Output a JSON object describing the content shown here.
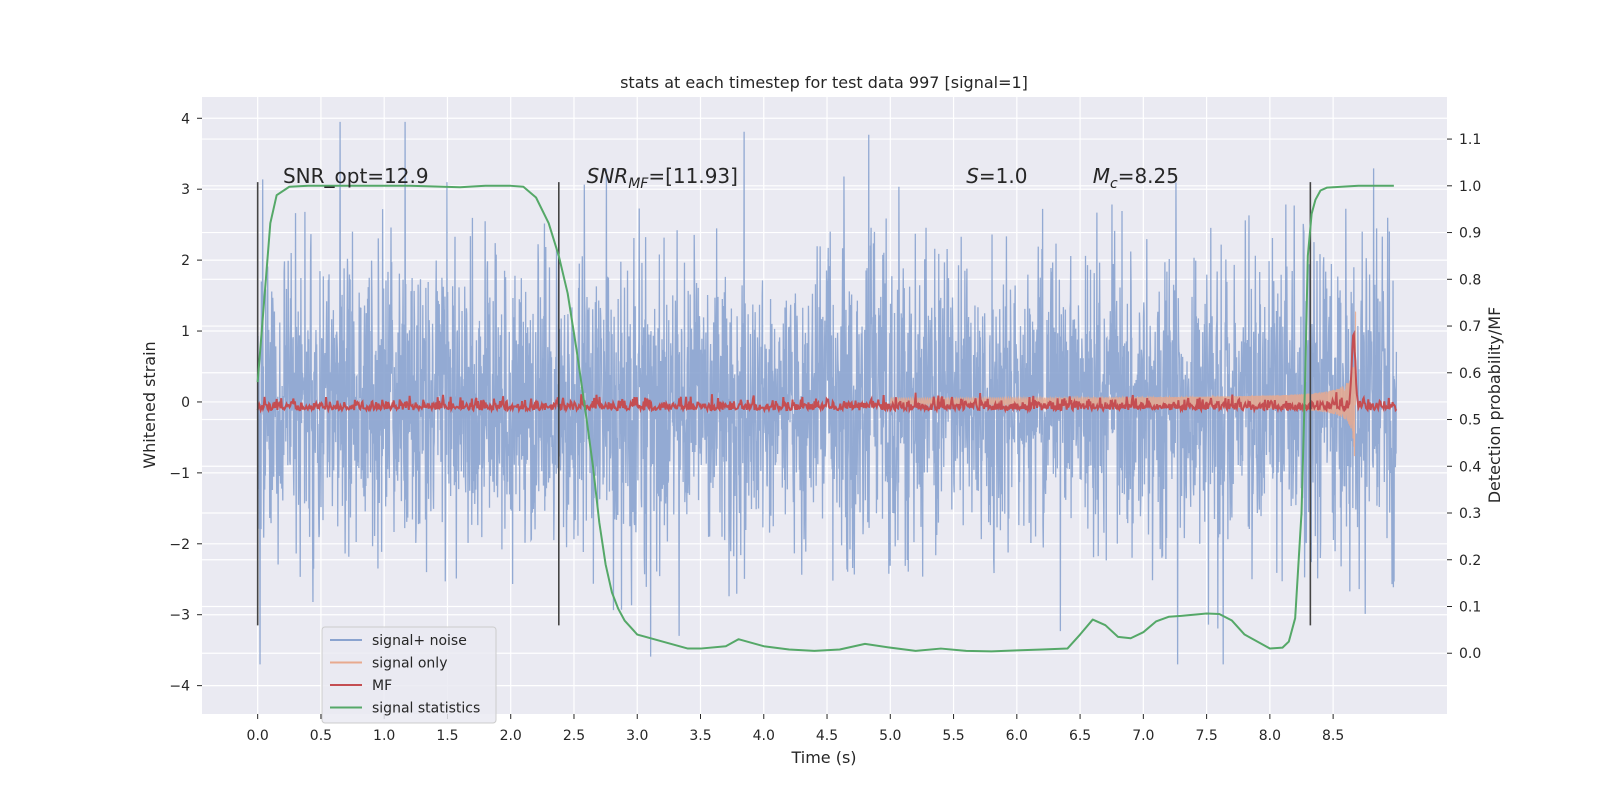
{
  "chart_data": {
    "type": "line",
    "title": "stats at each timestep for test data 997 [signal=1]",
    "xlabel": "Time (s)",
    "ylabel_left": "Whitened strain",
    "ylabel_right": "Detection probability/MF",
    "xlim": [
      -0.44,
      9.4
    ],
    "ylim_left": [
      -4.4,
      4.3
    ],
    "ylim_right": [
      -0.13,
      1.19
    ],
    "xticks": [
      "0.0",
      "0.5",
      "1.0",
      "1.5",
      "2.0",
      "2.5",
      "3.0",
      "3.5",
      "4.0",
      "4.5",
      "5.0",
      "5.5",
      "6.0",
      "6.5",
      "7.0",
      "7.5",
      "8.0",
      "8.5"
    ],
    "yticks_left": [
      "4",
      "3",
      "2",
      "1",
      "0",
      "−1",
      "−2",
      "−3",
      "−4"
    ],
    "yticks_right": [
      "1.1",
      "1.0",
      "0.9",
      "0.8",
      "0.7",
      "0.6",
      "0.5",
      "0.4",
      "0.3",
      "0.2",
      "0.1",
      "0.0"
    ],
    "vlines_x": [
      0.0,
      2.38,
      8.32
    ],
    "annotations": [
      {
        "label": "SNR_opt=12.9",
        "x": 0.2,
        "y_right": 1.0
      },
      {
        "label": "SNR_MF=[11.93]",
        "x": 2.6,
        "y_right": 1.0
      },
      {
        "label": "S=1.0",
        "x": 5.6,
        "y_right": 1.0
      },
      {
        "label": "M_c=8.25",
        "x": 6.6,
        "y_right": 1.0
      }
    ],
    "series": [
      {
        "name": "signal+ noise",
        "color": "#8aa3cf",
        "axis": "left",
        "note": "whitened strain noise, approx. range −3.7 to 3.95",
        "x_range": [
          0.0,
          9.0
        ]
      },
      {
        "name": "signal only",
        "color": "#e8a98e",
        "axis": "left",
        "note": "chirp growing toward merger near 8.65 s, peak ≈ 2.1",
        "x_range": [
          5.0,
          8.68
        ]
      },
      {
        "name": "MF",
        "color": "#c44e52",
        "axis": "right",
        "note": "matched filter output around 0.5–0.55, spike ≈ 0.67 near 8.65 s",
        "x_range": [
          0.0,
          9.0
        ]
      },
      {
        "name": "signal statistics",
        "color": "#55a868",
        "axis": "right",
        "x": [
          0.0,
          0.05,
          0.1,
          0.15,
          0.25,
          0.4,
          0.8,
          1.2,
          1.6,
          1.8,
          2.0,
          2.1,
          2.2,
          2.3,
          2.38,
          2.45,
          2.52,
          2.6,
          2.65,
          2.7,
          2.75,
          2.8,
          2.85,
          2.9,
          3.0,
          3.2,
          3.4,
          3.5,
          3.7,
          3.8,
          4.0,
          4.2,
          4.4,
          4.6,
          4.8,
          5.0,
          5.2,
          5.4,
          5.6,
          5.8,
          6.0,
          6.2,
          6.4,
          6.5,
          6.6,
          6.7,
          6.8,
          6.9,
          7.0,
          7.1,
          7.2,
          7.3,
          7.5,
          7.6,
          7.7,
          7.8,
          8.0,
          8.1,
          8.15,
          8.2,
          8.25,
          8.28,
          8.3,
          8.33,
          8.36,
          8.4,
          8.45,
          8.5,
          8.7,
          8.9,
          8.98
        ],
        "y": [
          0.58,
          0.75,
          0.92,
          0.98,
          0.998,
          1.0,
          1.0,
          1.0,
          0.997,
          1.0,
          1.0,
          0.998,
          0.975,
          0.92,
          0.85,
          0.77,
          0.65,
          0.5,
          0.4,
          0.28,
          0.19,
          0.13,
          0.095,
          0.07,
          0.04,
          0.025,
          0.01,
          0.01,
          0.015,
          0.03,
          0.015,
          0.008,
          0.005,
          0.008,
          0.02,
          0.012,
          0.005,
          0.01,
          0.005,
          0.004,
          0.006,
          0.008,
          0.01,
          0.04,
          0.072,
          0.06,
          0.035,
          0.032,
          0.045,
          0.068,
          0.078,
          0.08,
          0.085,
          0.084,
          0.07,
          0.04,
          0.01,
          0.012,
          0.025,
          0.075,
          0.3,
          0.6,
          0.85,
          0.94,
          0.97,
          0.99,
          0.996,
          0.997,
          1.0,
          1.0,
          1.0
        ]
      }
    ],
    "legend": {
      "placement": "lower-left",
      "entries": [
        "signal+ noise",
        "signal only",
        "MF",
        "signal statistics"
      ]
    },
    "grid": true,
    "colors": {
      "plot_bg": "#eaeaf2",
      "grid": "#ffffff",
      "text": "#262626",
      "vline": "#444444"
    }
  }
}
